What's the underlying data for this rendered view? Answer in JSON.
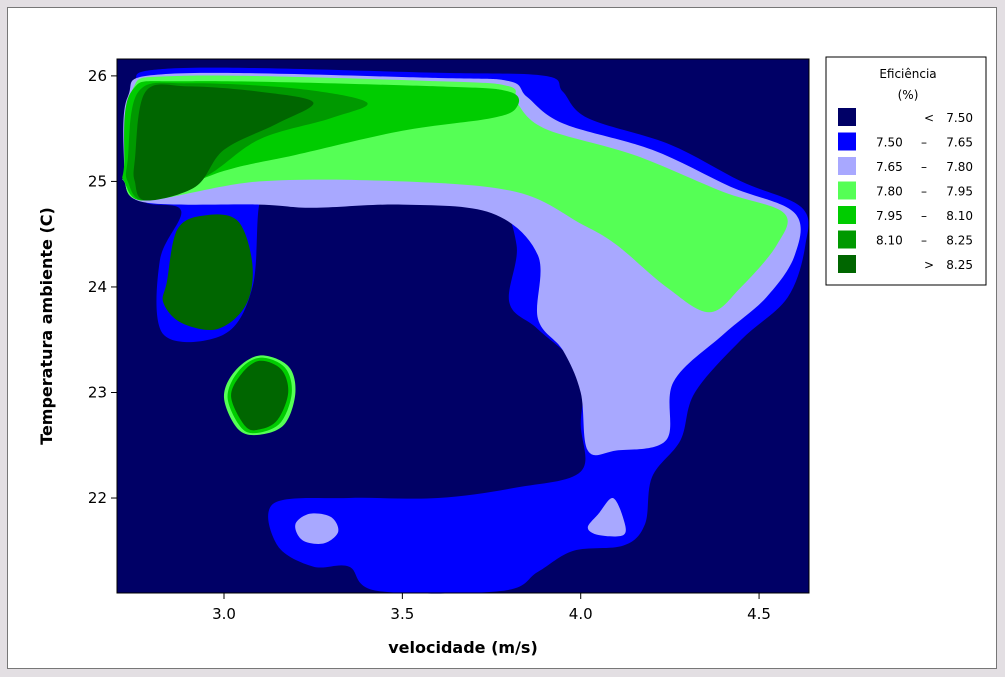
{
  "chart_data": {
    "type": "contour",
    "xlabel": "velocidade (m/s)",
    "ylabel": "Temperatura ambiente (C)",
    "xlim": [
      2.7,
      4.64
    ],
    "ylim": [
      21.1,
      26.16
    ],
    "x_ticks": [
      {
        "value": 3.0,
        "label": "3.0"
      },
      {
        "value": 3.5,
        "label": "3.5"
      },
      {
        "value": 4.0,
        "label": "4.0"
      },
      {
        "value": 4.5,
        "label": "4.5"
      }
    ],
    "y_ticks": [
      {
        "value": 22,
        "label": "22"
      },
      {
        "value": 23,
        "label": "23"
      },
      {
        "value": 24,
        "label": "24"
      },
      {
        "value": 25,
        "label": "25"
      },
      {
        "value": 26,
        "label": "26"
      }
    ],
    "legend": {
      "title_line1": "Eficiência",
      "title_line2": "(%)",
      "placement": "right",
      "entries": [
        {
          "op": "<",
          "low": "",
          "high": "7.50",
          "color": "#000066"
        },
        {
          "op": "",
          "low": "7.50",
          "sep": "–",
          "high": "7.65",
          "color": "#0000ff"
        },
        {
          "op": "",
          "low": "7.65",
          "sep": "–",
          "high": "7.80",
          "color": "#a8a8ff"
        },
        {
          "op": "",
          "low": "7.80",
          "sep": "–",
          "high": "7.95",
          "color": "#55ff55"
        },
        {
          "op": "",
          "low": "7.95",
          "sep": "–",
          "high": "8.10",
          "color": "#00cc00"
        },
        {
          "op": "",
          "low": "8.10",
          "sep": "–",
          "high": "8.25",
          "color": "#009900"
        },
        {
          "op": ">",
          "low": "",
          "high": "8.25",
          "color": "#006600"
        }
      ]
    },
    "regions": [
      {
        "level": 1,
        "points": [
          [
            2.72,
            25.1
          ],
          [
            2.75,
            25.85
          ],
          [
            2.85,
            26.07
          ],
          [
            3.6,
            26.03
          ],
          [
            3.9,
            26.0
          ],
          [
            3.95,
            25.85
          ],
          [
            4.02,
            25.6
          ],
          [
            4.25,
            25.35
          ],
          [
            4.45,
            25.0
          ],
          [
            4.62,
            24.75
          ],
          [
            4.63,
            24.4
          ],
          [
            4.58,
            23.9
          ],
          [
            4.45,
            23.5
          ],
          [
            4.32,
            23.0
          ],
          [
            4.28,
            22.55
          ],
          [
            4.2,
            22.2
          ],
          [
            4.18,
            21.75
          ],
          [
            4.12,
            21.55
          ],
          [
            3.98,
            21.5
          ],
          [
            3.88,
            21.3
          ],
          [
            3.78,
            21.12
          ],
          [
            3.43,
            21.12
          ],
          [
            3.35,
            21.35
          ],
          [
            3.25,
            21.35
          ],
          [
            3.15,
            21.55
          ],
          [
            3.14,
            21.95
          ],
          [
            3.35,
            22.0
          ],
          [
            3.6,
            22.0
          ],
          [
            3.82,
            22.1
          ],
          [
            4.0,
            22.25
          ],
          [
            4.0,
            22.7
          ],
          [
            4.0,
            23.2
          ],
          [
            3.88,
            23.6
          ],
          [
            3.8,
            23.85
          ],
          [
            3.82,
            24.4
          ],
          [
            3.75,
            24.85
          ],
          [
            3.52,
            24.95
          ],
          [
            3.3,
            24.95
          ],
          [
            3.15,
            24.92
          ],
          [
            3.1,
            24.8
          ],
          [
            3.08,
            24.0
          ],
          [
            3.0,
            23.55
          ],
          [
            2.83,
            23.55
          ],
          [
            2.82,
            24.25
          ],
          [
            2.88,
            24.72
          ],
          [
            2.78,
            24.8
          ],
          [
            2.72,
            25.0
          ]
        ]
      },
      {
        "level": 2,
        "points": [
          [
            2.72,
            25.1
          ],
          [
            2.73,
            25.8
          ],
          [
            2.85,
            26.02
          ],
          [
            3.6,
            25.98
          ],
          [
            3.8,
            25.95
          ],
          [
            3.85,
            25.8
          ],
          [
            3.95,
            25.55
          ],
          [
            4.2,
            25.3
          ],
          [
            4.42,
            24.95
          ],
          [
            4.6,
            24.7
          ],
          [
            4.6,
            24.3
          ],
          [
            4.52,
            23.9
          ],
          [
            4.4,
            23.55
          ],
          [
            4.26,
            23.1
          ],
          [
            4.24,
            22.55
          ],
          [
            4.1,
            22.45
          ],
          [
            4.02,
            22.45
          ],
          [
            4.0,
            23.0
          ],
          [
            3.95,
            23.4
          ],
          [
            3.88,
            23.7
          ],
          [
            3.88,
            24.3
          ],
          [
            3.75,
            24.7
          ],
          [
            3.5,
            24.78
          ],
          [
            3.25,
            24.75
          ],
          [
            3.1,
            24.78
          ],
          [
            2.78,
            24.8
          ],
          [
            2.72,
            25.0
          ]
        ]
      },
      {
        "level": 3,
        "points": [
          [
            2.72,
            25.1
          ],
          [
            2.74,
            25.85
          ],
          [
            2.88,
            26.0
          ],
          [
            3.6,
            25.95
          ],
          [
            3.8,
            25.9
          ],
          [
            3.82,
            25.75
          ],
          [
            3.9,
            25.5
          ],
          [
            4.15,
            25.25
          ],
          [
            4.4,
            24.9
          ],
          [
            4.57,
            24.7
          ],
          [
            4.55,
            24.4
          ],
          [
            4.45,
            24.0
          ],
          [
            4.36,
            23.76
          ],
          [
            4.24,
            24.0
          ],
          [
            4.1,
            24.4
          ],
          [
            4.0,
            24.6
          ],
          [
            3.82,
            24.9
          ],
          [
            3.5,
            25.0
          ],
          [
            3.1,
            25.0
          ],
          [
            2.78,
            24.82
          ],
          [
            2.72,
            25.0
          ]
        ]
      },
      {
        "level": 4,
        "points": [
          [
            2.72,
            25.15
          ],
          [
            2.74,
            25.85
          ],
          [
            2.9,
            25.95
          ],
          [
            3.6,
            25.9
          ],
          [
            3.8,
            25.85
          ],
          [
            3.82,
            25.7
          ],
          [
            3.75,
            25.6
          ],
          [
            3.5,
            25.48
          ],
          [
            3.2,
            25.25
          ],
          [
            3.0,
            25.1
          ],
          [
            2.78,
            24.82
          ],
          [
            2.72,
            25.0
          ]
        ]
      },
      {
        "level": 5,
        "points": [
          [
            2.73,
            25.2
          ],
          [
            2.76,
            25.85
          ],
          [
            2.9,
            25.93
          ],
          [
            3.2,
            25.88
          ],
          [
            3.4,
            25.75
          ],
          [
            3.3,
            25.6
          ],
          [
            3.1,
            25.4
          ],
          [
            2.95,
            25.05
          ],
          [
            2.78,
            24.82
          ],
          [
            2.73,
            25.0
          ]
        ]
      },
      {
        "level": 6,
        "points": [
          [
            2.75,
            25.2
          ],
          [
            2.78,
            25.85
          ],
          [
            2.9,
            25.9
          ],
          [
            3.1,
            25.85
          ],
          [
            3.25,
            25.75
          ],
          [
            3.15,
            25.55
          ],
          [
            3.0,
            25.3
          ],
          [
            2.92,
            24.95
          ],
          [
            2.78,
            24.82
          ],
          [
            2.75,
            25.0
          ]
        ]
      },
      {
        "level": 6,
        "points": [
          [
            2.84,
            24.05
          ],
          [
            2.87,
            24.55
          ],
          [
            2.95,
            24.68
          ],
          [
            3.04,
            24.62
          ],
          [
            3.08,
            24.2
          ],
          [
            3.06,
            23.82
          ],
          [
            2.98,
            23.6
          ],
          [
            2.88,
            23.66
          ],
          [
            2.83,
            23.85
          ]
        ]
      },
      {
        "level": 3,
        "points": [
          [
            3.03,
            23.2
          ],
          [
            3.1,
            23.35
          ],
          [
            3.18,
            23.25
          ],
          [
            3.2,
            23.0
          ],
          [
            3.17,
            22.7
          ],
          [
            3.1,
            22.6
          ],
          [
            3.04,
            22.65
          ],
          [
            3.0,
            22.95
          ]
        ]
      },
      {
        "level": 4,
        "points": [
          [
            3.04,
            23.2
          ],
          [
            3.1,
            23.33
          ],
          [
            3.17,
            23.24
          ],
          [
            3.19,
            23.0
          ],
          [
            3.16,
            22.72
          ],
          [
            3.1,
            22.62
          ],
          [
            3.05,
            22.66
          ],
          [
            3.01,
            22.95
          ]
        ]
      },
      {
        "level": 6,
        "points": [
          [
            3.05,
            23.18
          ],
          [
            3.1,
            23.3
          ],
          [
            3.16,
            23.22
          ],
          [
            3.18,
            23.0
          ],
          [
            3.15,
            22.74
          ],
          [
            3.1,
            22.65
          ],
          [
            3.06,
            22.68
          ],
          [
            3.02,
            22.96
          ]
        ]
      },
      {
        "level": 2,
        "points": [
          [
            3.2,
            21.75
          ],
          [
            3.24,
            21.85
          ],
          [
            3.3,
            21.82
          ],
          [
            3.32,
            21.68
          ],
          [
            3.28,
            21.57
          ],
          [
            3.22,
            21.6
          ]
        ]
      },
      {
        "level": 2,
        "points": [
          [
            4.02,
            21.72
          ],
          [
            4.05,
            21.85
          ],
          [
            4.09,
            22.0
          ],
          [
            4.12,
            21.8
          ],
          [
            4.12,
            21.65
          ],
          [
            4.05,
            21.65
          ]
        ]
      }
    ]
  }
}
